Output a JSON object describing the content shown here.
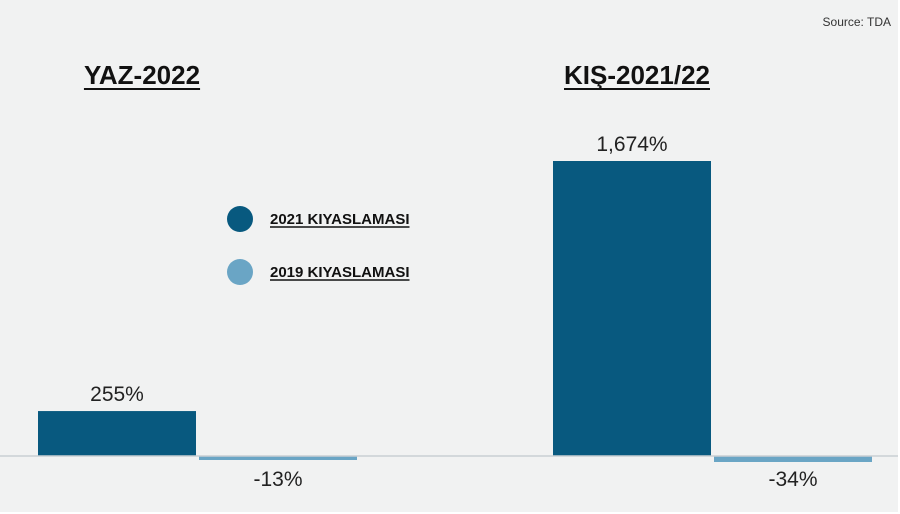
{
  "source": "Source: TDA",
  "legend": {
    "items": [
      {
        "label": "2021 KIYASLAMASI",
        "color": "#08597f"
      },
      {
        "label": "2019 KIYASLAMASI",
        "color": "#6aa5c5"
      }
    ],
    "placement": "center-left"
  },
  "chart_data": {
    "type": "bar",
    "categories": [
      "YAZ-2022",
      "KIŞ-2021/22"
    ],
    "series": [
      {
        "name": "2021 KIYASLAMASI",
        "values": [
          255,
          1674
        ],
        "labels": [
          "255%",
          "1,674%"
        ],
        "color": "#08597f"
      },
      {
        "name": "2019 KIYASLAMASI",
        "values": [
          -13,
          -34
        ],
        "labels": [
          "-13%",
          "-34%"
        ],
        "color": "#6aa5c5"
      }
    ],
    "title": "",
    "xlabel": "",
    "ylabel": "",
    "unit": "%",
    "grid": false
  }
}
